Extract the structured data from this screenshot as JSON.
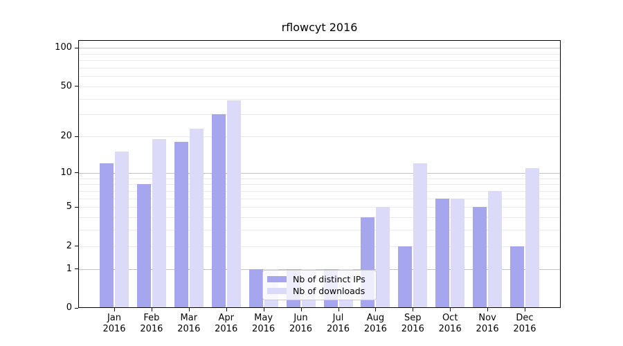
{
  "chart_data": {
    "type": "bar",
    "title": "rflowcyt 2016",
    "categories": [
      "Jan 2016",
      "Feb 2016",
      "Mar 2016",
      "Apr 2016",
      "May 2016",
      "Jun 2016",
      "Jul 2016",
      "Aug 2016",
      "Sep 2016",
      "Oct 2016",
      "Nov 2016",
      "Dec 2016"
    ],
    "series": [
      {
        "name": "Nb of distinct IPs",
        "values": [
          12,
          8,
          18,
          30,
          1,
          1,
          1,
          4,
          2,
          6,
          5,
          2
        ],
        "color": "#a6a6ef"
      },
      {
        "name": "Nb of downloads",
        "values": [
          15,
          19,
          23,
          39,
          1,
          1,
          1,
          5,
          12,
          6,
          7,
          11
        ],
        "color": "#dbdbf9"
      }
    ],
    "xlabel": "",
    "ylabel": "",
    "yscale": "log1p",
    "ylim": [
      0,
      115
    ],
    "yticks": [
      100,
      50,
      20,
      10,
      5,
      2,
      1,
      0
    ],
    "minor_gridlines": [
      2,
      3,
      4,
      5,
      6,
      7,
      8,
      9,
      20,
      30,
      40,
      50,
      60,
      70,
      80,
      90
    ],
    "major_gridlines": [
      1,
      10,
      100
    ],
    "grid": "horizontal",
    "legend_position": "lower-center",
    "colors": {
      "axis": "#000000",
      "grid_minor": "#ebebeb",
      "grid_major": "#c3c3c3",
      "background": "#ffffff",
      "text": "#000000"
    }
  }
}
